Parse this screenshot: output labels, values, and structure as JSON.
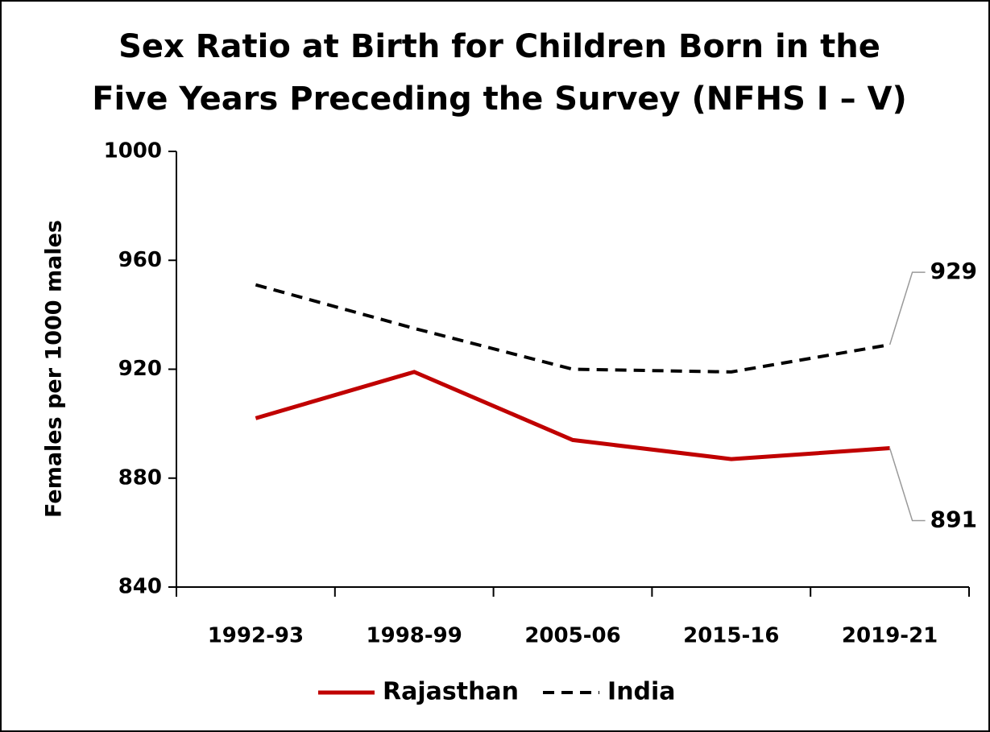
{
  "chart_data": {
    "type": "line",
    "title": [
      "Sex Ratio at Birth for Children Born in the",
      "Five Years Preceding the Survey (NFHS I – V)"
    ],
    "ylabel": "Females per 1000 males",
    "categories": [
      "1992-93",
      "1998-99",
      "2005-06",
      "2015-16",
      "2019-21"
    ],
    "series": [
      {
        "name": "Rajasthan",
        "color": "#c00000",
        "dash": false,
        "values": [
          902,
          919,
          894,
          887,
          891
        ]
      },
      {
        "name": "India",
        "color": "#000000",
        "dash": true,
        "values": [
          951,
          935,
          920,
          919,
          929
        ]
      }
    ],
    "ylim": [
      840,
      1000
    ],
    "yticks": [
      840,
      880,
      920,
      960,
      1000
    ],
    "legend": "bottom"
  }
}
